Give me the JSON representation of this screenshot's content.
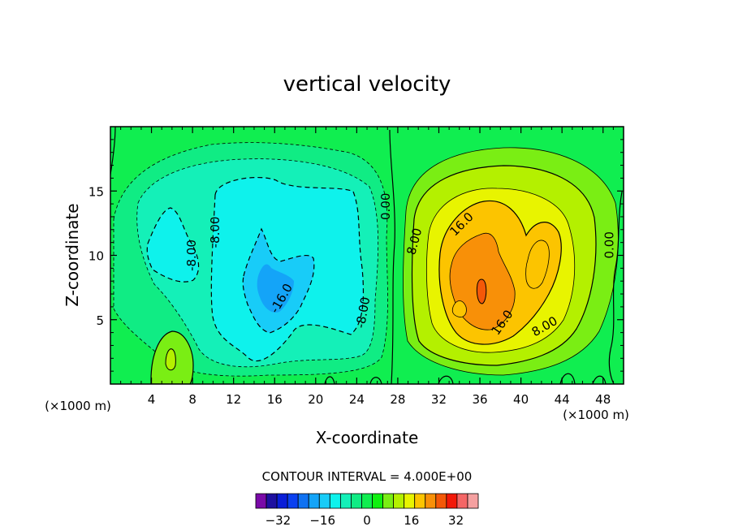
{
  "chart_data": {
    "type": "contour",
    "title": "vertical velocity",
    "xlabel": "X-coordinate",
    "ylabel": "Z-coordinate",
    "x_unit": "(×1000 m)",
    "z_unit": "(×1000 m)",
    "xlim": [
      0,
      50
    ],
    "ylim": [
      0,
      20
    ],
    "x_ticks": [
      4,
      8,
      12,
      16,
      20,
      24,
      28,
      32,
      36,
      40,
      44,
      48
    ],
    "y_ticks": [
      5,
      10,
      15
    ],
    "contour_interval_text": "CONTOUR INTERVAL = 4.000E+00",
    "contour_interval": 4.0,
    "contour_labels": [
      {
        "text": "0.00",
        "x": 27.2,
        "z": 13.8
      },
      {
        "text": "0.00",
        "x": 49.0,
        "z": 10.8
      },
      {
        "text": "8.00",
        "x": 30.0,
        "z": 11.0
      },
      {
        "text": "8.00",
        "x": 42.5,
        "z": 4.2
      },
      {
        "text": "16.0",
        "x": 34.5,
        "z": 12.2
      },
      {
        "text": "16.0",
        "x": 38.5,
        "z": 4.6
      },
      {
        "text": "-8.00",
        "x": 8.3,
        "z": 10.0
      },
      {
        "text": "-8.00",
        "x": 10.6,
        "z": 11.8
      },
      {
        "text": "-8.00",
        "x": 25.0,
        "z": 5.5
      },
      {
        "text": "-16.0",
        "x": 17.0,
        "z": 6.5
      }
    ],
    "colorbar": {
      "levels": [
        -40,
        -36,
        -32,
        -28,
        -24,
        -20,
        -16,
        -12,
        -8,
        -4,
        0,
        4,
        8,
        12,
        16,
        20,
        24,
        28,
        32,
        36,
        40
      ],
      "tick_labels": [
        "-32",
        "-16",
        "0",
        "16",
        "32"
      ],
      "colors": [
        "#7a0aa8",
        "#1e10a0",
        "#0a1ed8",
        "#0a40f0",
        "#1072f2",
        "#14a4f8",
        "#18ccf8",
        "#0ef2ec",
        "#14f0b8",
        "#10ec84",
        "#10ee50",
        "#10f010",
        "#7aee14",
        "#b4f000",
        "#e8f400",
        "#fcc400",
        "#f89008",
        "#f45808",
        "#f21808",
        "#f46666",
        "#f4a0a0"
      ]
    }
  }
}
